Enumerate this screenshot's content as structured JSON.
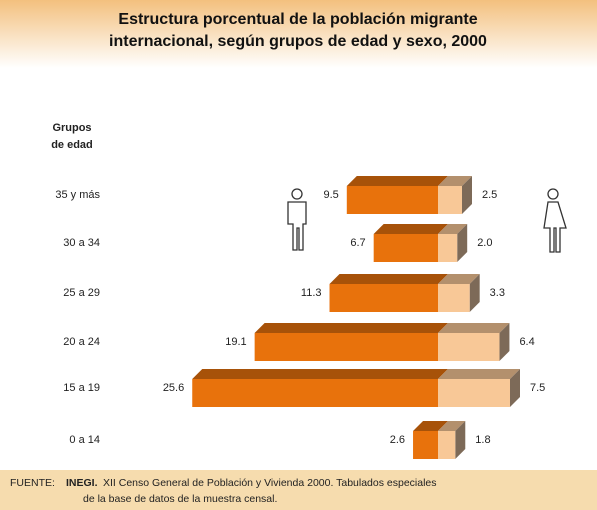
{
  "chart_data": {
    "type": "pyramid",
    "title": [
      "Estructura porcentual de la población migrante",
      "internacional, según grupos de edad y sexo, 2000"
    ],
    "category_label": [
      "Grupos",
      "de edad"
    ],
    "categories": [
      "35 y más",
      "30 a 34",
      "25 a 29",
      "20 a 24",
      "15 a 19",
      "0 a 14"
    ],
    "series": [
      {
        "color": "#e8720c",
        "values": [
          9.5,
          6.7,
          11.3,
          19.1,
          25.6,
          2.6
        ],
        "value_labels": [
          "9.5",
          "6.7",
          "11.3",
          "19.1",
          "25.6",
          "2.6"
        ]
      },
      {
        "color": "#f8c897",
        "values": [
          2.5,
          2.0,
          3.3,
          6.4,
          7.5,
          1.8
        ],
        "value_labels": [
          "2.5",
          "2.0",
          "3.3",
          "6.4",
          "7.5",
          "1.8"
        ]
      }
    ]
  },
  "source": {
    "label": "FUENTE:",
    "org": "INEGI.",
    "text": [
      "XII Censo General de Población y Vivienda 2000. Tabulados especiales",
      "de la base de datos de la muestra censal."
    ]
  }
}
